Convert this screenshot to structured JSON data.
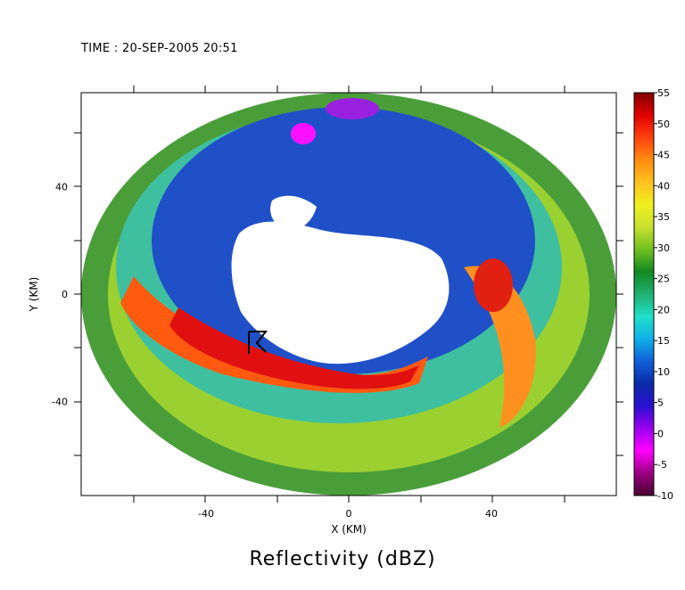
{
  "time_label": "TIME : 20-SEP-2005 20:51",
  "chart_data": {
    "type": "heatmap",
    "title": "Reflectivity (dBZ)",
    "xlabel": "X (KM)",
    "ylabel": "Y (KM)",
    "xlim": [
      -75,
      75
    ],
    "ylim": [
      -75,
      75
    ],
    "x_ticks": [
      -40,
      0,
      40
    ],
    "y_ticks": [
      -40,
      0,
      40
    ],
    "grid": false,
    "colorbar": {
      "label": "Reflectivity (dBZ)",
      "ticks": [
        55,
        50,
        45,
        40,
        35,
        30,
        25,
        20,
        15,
        10,
        5,
        0,
        -5,
        -10
      ],
      "range": [
        -10,
        55
      ],
      "colors": [
        "#4a0030",
        "#9a0080",
        "#ff00ff",
        "#9900ee",
        "#2a10d0",
        "#0a2aa8",
        "#1060d8",
        "#10b0e8",
        "#20e0c8",
        "#20b070",
        "#118a22",
        "#70c020",
        "#c8e030",
        "#f0f020",
        "#ffc020",
        "#ff8c10",
        "#ff4010",
        "#e00000",
        "#800000"
      ]
    },
    "marker": {
      "name": "radar-site",
      "x": -28,
      "y": -14
    }
  }
}
